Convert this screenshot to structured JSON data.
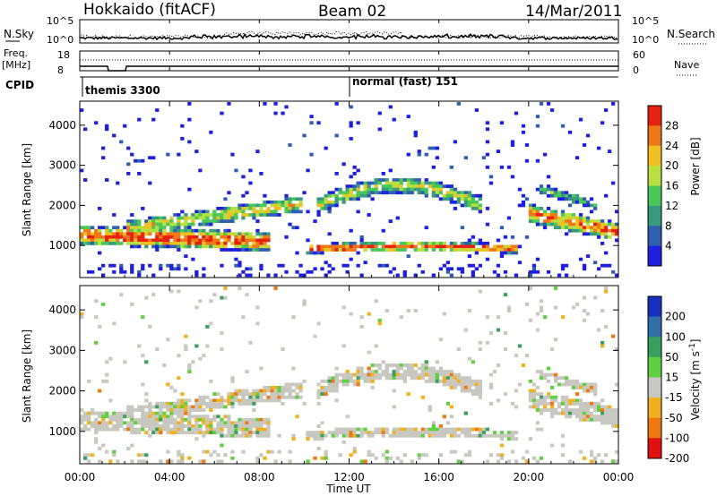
{
  "header": {
    "station": "Hokkaido (fitACF)",
    "beam": "Beam 02",
    "date": "14/Mar/2011"
  },
  "top_panels": {
    "nsky_label": "N.Sky",
    "nsky_ticks": [
      "10^5",
      "10^0"
    ],
    "nsearch_label": "N.Search",
    "nsearch_ticks": [
      "10^5",
      "10^0"
    ],
    "freq_label": "Freq.",
    "freq_unit": "[MHz]",
    "freq_ticks": [
      "18",
      "8"
    ],
    "nave_label": "Nave",
    "nave_ticks": [
      "60",
      "0"
    ],
    "cpid_label": "CPID",
    "cpid_segments": [
      "themis 3300",
      "normal (fast) 151"
    ]
  },
  "chart_data": [
    {
      "type": "heatmap",
      "name": "power-panel",
      "ylabel": "Slant Range [km]",
      "y_ticks": [
        "1000",
        "2000",
        "3000",
        "4000"
      ],
      "ylim": [
        200,
        4600
      ],
      "colorbar_label": "Power [dB]",
      "colorbar_ticks": [
        "4",
        "8",
        "12",
        "16",
        "20",
        "24",
        "28"
      ],
      "colorscale": [
        "#1f1fe0",
        "#2f5fb0",
        "#3a9a80",
        "#48c858",
        "#b8e040",
        "#f0c020",
        "#f07818",
        "#e82010"
      ],
      "x_ticks": [
        "00:00",
        "04:00",
        "08:00",
        "12:00",
        "16:00",
        "20:00",
        "00:00"
      ],
      "x_hours": [
        0,
        4,
        8,
        12,
        16,
        20,
        24
      ]
    },
    {
      "type": "heatmap",
      "name": "velocity-panel",
      "ylabel": "Slant Range [km]",
      "y_ticks": [
        "1000",
        "2000",
        "3000",
        "4000"
      ],
      "ylim": [
        200,
        4600
      ],
      "colorbar_label": "Velocity [m s^-1]",
      "colorbar_ticks": [
        "200",
        "100",
        "50",
        "15",
        "-15",
        "-50",
        "-100",
        "-200"
      ],
      "colorscale": [
        "#1830c0",
        "#2f6ea8",
        "#3aa060",
        "#60d040",
        "#c8c8c0",
        "#f0b020",
        "#f07810",
        "#e01010"
      ],
      "x_ticks": [
        "00:00",
        "04:00",
        "08:00",
        "12:00",
        "16:00",
        "20:00",
        "00:00"
      ],
      "x_hours": [
        0,
        4,
        8,
        12,
        16,
        20,
        24
      ],
      "xlabel": "Time UT"
    }
  ]
}
